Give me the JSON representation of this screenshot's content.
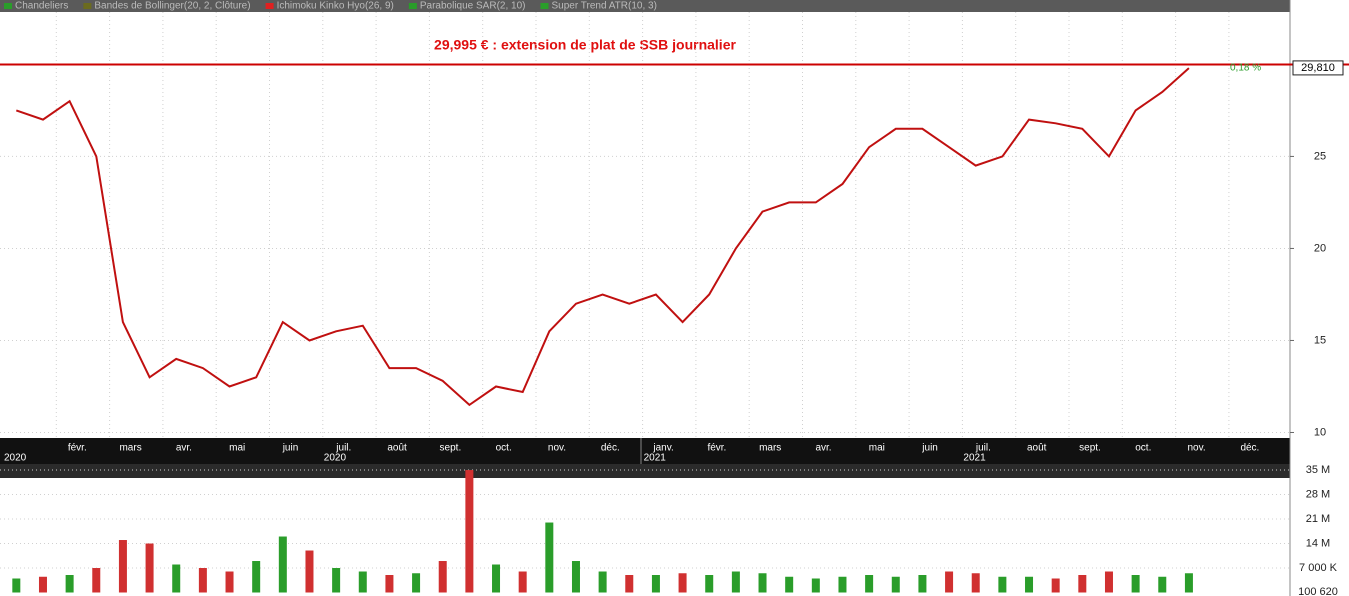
{
  "chart_data": {
    "type": "line",
    "title": "29,995 € : extension de plat de SSB journalier",
    "legend": [
      {
        "name": "Chandeliers",
        "color": "#2a9d2a"
      },
      {
        "name": "Bandes de Bollinger(20, 2, Clôture)",
        "color": "#6b6b1f"
      },
      {
        "name": "Ichimoku Kinko Hyo(26, 9)",
        "color": "#e02020"
      },
      {
        "name": "Parabolique SAR(2, 10)",
        "color": "#2a9d2a"
      },
      {
        "name": "Super Trend ATR(10, 3)",
        "color": "#2a9d2a"
      }
    ],
    "categories": [
      null,
      null,
      "févr.",
      null,
      "mars",
      null,
      "avr.",
      null,
      "mai",
      null,
      "juin",
      null,
      "juil.",
      null,
      "août",
      null,
      "sept.",
      null,
      "oct.",
      null,
      "nov.",
      null,
      "déc.",
      null,
      "janv.",
      null,
      "févr.",
      null,
      "mars",
      null,
      "avr.",
      null,
      "mai",
      null,
      "juin",
      null,
      "juil.",
      null,
      "août",
      null,
      "sept.",
      null,
      "oct.",
      null,
      "nov.",
      null,
      "déc.",
      null
    ],
    "year_categories": [
      "2020",
      null,
      null,
      null,
      null,
      null,
      null,
      null,
      null,
      null,
      null,
      null,
      "2020",
      null,
      null,
      null,
      null,
      null,
      null,
      null,
      null,
      null,
      null,
      null,
      "2021",
      null,
      null,
      null,
      null,
      null,
      null,
      null,
      null,
      null,
      null,
      null,
      "2021",
      null,
      null,
      null,
      null,
      null,
      null,
      null,
      null,
      null,
      null,
      null
    ],
    "series": [
      {
        "name": "Clôture",
        "color": "#c01010",
        "values": [
          27.5,
          27,
          28,
          25,
          16,
          13,
          14,
          13.5,
          12.5,
          13,
          16,
          15,
          15.5,
          15.8,
          13.5,
          13.5,
          12.8,
          11.5,
          12.5,
          12.2,
          15.5,
          17,
          17.5,
          17,
          17.5,
          16,
          17.5,
          20,
          22,
          22.5,
          22.5,
          23.5,
          25.5,
          26.5,
          26.5,
          25.5,
          24.5,
          25,
          27,
          26.8,
          26.5,
          25,
          27.5,
          28.5,
          29.8,
          null,
          null,
          null
        ]
      }
    ],
    "ylim": [
      9.7,
      33.5
    ],
    "yticks": [
      10,
      15,
      20,
      25
    ],
    "hline": {
      "value": 29.995,
      "color": "#cc0000"
    },
    "last_price": {
      "value": 29.81,
      "label": "29,810"
    },
    "change_label": "0,18 %",
    "grid": true,
    "volume": {
      "up_color": "#2a9d2a",
      "down_color": "#d03030",
      "values": [
        4000000,
        4500000,
        5000000,
        7000000,
        15000000,
        14000000,
        8000000,
        7000000,
        6000000,
        9000000,
        16000000,
        12000000,
        7000000,
        6000000,
        5000000,
        5500000,
        9000000,
        35000000,
        8000000,
        6000000,
        20000000,
        9000000,
        6000000,
        5000000,
        5000000,
        5500000,
        5000000,
        6000000,
        5500000,
        4500000,
        4000000,
        4500000,
        5000000,
        4500000,
        5000000,
        6000000,
        5500000,
        4500000,
        4500000,
        4000000,
        5000000,
        6000000,
        5000000,
        4500000,
        5500000,
        null,
        null,
        null
      ],
      "ylim": [
        0,
        37300000
      ],
      "yticks": [
        {
          "value": 35000000,
          "label": "35 M"
        },
        {
          "value": 28000000,
          "label": "28 M"
        },
        {
          "value": 21000000,
          "label": "21 M"
        },
        {
          "value": 14000000,
          "label": "14 M"
        },
        {
          "value": 7000000,
          "label": "7 000 K"
        }
      ],
      "last": {
        "value": 100620,
        "label": "100 620"
      }
    }
  }
}
